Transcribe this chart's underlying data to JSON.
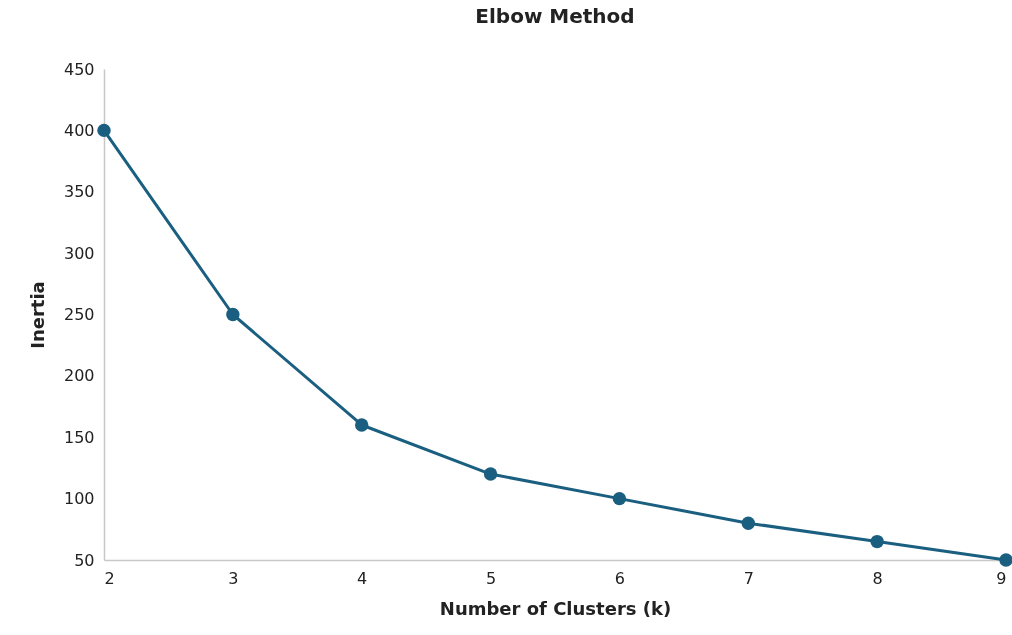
{
  "chart_data": {
    "type": "line",
    "title": "Elbow Method",
    "xlabel": "Number of Clusters (k)",
    "ylabel": "Inertia",
    "x": [
      2,
      3,
      4,
      5,
      6,
      7,
      8,
      9
    ],
    "series": [
      {
        "color": "#1a5f80",
        "values": [
          400,
          250,
          160,
          120,
          100,
          80,
          65,
          50
        ]
      }
    ],
    "xlim": [
      2,
      9
    ],
    "xticks": [
      2,
      3,
      4,
      5,
      6,
      7,
      8,
      9
    ],
    "ylim": [
      50,
      450
    ],
    "yticks": [
      50,
      100,
      150,
      200,
      250,
      300,
      350,
      400,
      450
    ],
    "grid": false,
    "marker": "circle",
    "line_style": "solid"
  }
}
